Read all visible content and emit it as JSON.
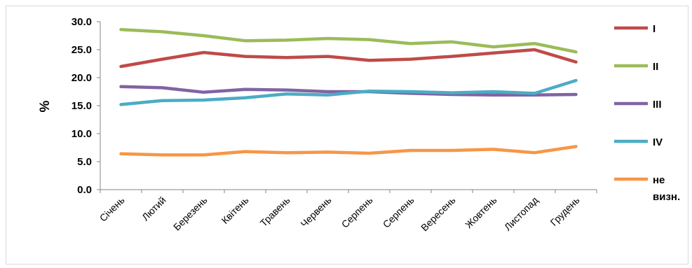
{
  "chart_data": {
    "type": "line",
    "title": "",
    "xlabel": "",
    "ylabel": "%",
    "ylim": [
      0,
      30
    ],
    "y_ticks": [
      "0.0",
      "5.0",
      "10.0",
      "15.0",
      "20.0",
      "25.0",
      "30.0"
    ],
    "grid": false,
    "legend_position": "right",
    "categories": [
      "Січень",
      "Лютий",
      "Березень",
      "Квітень",
      "Травень",
      "Червень",
      "Серпень",
      "Серпень",
      "Вересень",
      "Жовтень",
      "Листопад",
      "Грудень"
    ],
    "series": [
      {
        "name": "I",
        "color": "#be4b48",
        "values": [
          22.0,
          23.3,
          24.5,
          23.8,
          23.6,
          23.8,
          23.1,
          23.3,
          23.8,
          24.4,
          25.0,
          22.8
        ]
      },
      {
        "name": "II",
        "color": "#9bbb59",
        "values": [
          28.6,
          28.2,
          27.5,
          26.6,
          26.7,
          27.0,
          26.8,
          26.1,
          26.4,
          25.5,
          26.1,
          24.6
        ]
      },
      {
        "name": "III",
        "color": "#8064a2",
        "values": [
          18.4,
          18.2,
          17.4,
          17.9,
          17.8,
          17.5,
          17.5,
          17.2,
          17.0,
          16.9,
          16.9,
          17.0
        ]
      },
      {
        "name": "IV",
        "color": "#4bacc6",
        "values": [
          15.2,
          15.9,
          16.0,
          16.4,
          17.1,
          16.9,
          17.6,
          17.5,
          17.3,
          17.5,
          17.2,
          19.5
        ]
      },
      {
        "name": "не визн.",
        "color": "#f79646",
        "values": [
          6.4,
          6.2,
          6.2,
          6.8,
          6.6,
          6.7,
          6.5,
          7.0,
          7.0,
          7.2,
          6.6,
          7.7
        ]
      }
    ]
  }
}
